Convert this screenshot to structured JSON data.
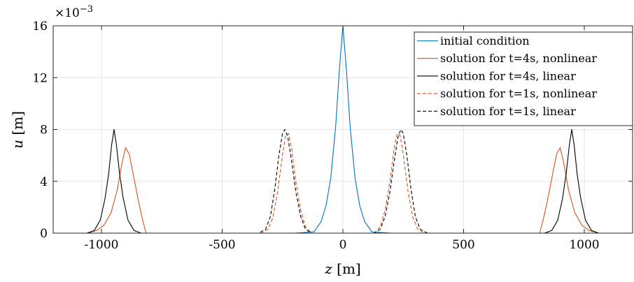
{
  "chart_data": {
    "type": "line",
    "xlabel": {
      "var": "z",
      "unit": " [m]"
    },
    "ylabel": {
      "var": "u",
      "unit": " [m]"
    },
    "y_multiplier": "×10",
    "y_multiplier_exp": "−3",
    "xlim": [
      -1200,
      1200
    ],
    "ylim": [
      0,
      16
    ],
    "xticks": [
      -1000,
      -500,
      0,
      500,
      1000
    ],
    "xtick_labels": [
      "-1000",
      "-500",
      "0",
      "500",
      "1000"
    ],
    "yticks": [
      0,
      4,
      8,
      12,
      16
    ],
    "ytick_labels": [
      "0",
      "4",
      "8",
      "12",
      "16"
    ],
    "grid": true,
    "legend_position": "top-right",
    "series": [
      {
        "name": "initial condition",
        "color": "#0072bd",
        "dash": "solid",
        "points": [
          [
            -1200,
            0
          ],
          [
            -200,
            0
          ],
          [
            -120,
            0.1
          ],
          [
            -90,
            0.9
          ],
          [
            -70,
            2.1
          ],
          [
            -50,
            4.3
          ],
          [
            -30,
            8.2
          ],
          [
            -15,
            12.5
          ],
          [
            0,
            16
          ],
          [
            15,
            12.5
          ],
          [
            30,
            8.2
          ],
          [
            50,
            4.3
          ],
          [
            70,
            2.1
          ],
          [
            90,
            0.9
          ],
          [
            120,
            0.1
          ],
          [
            200,
            0
          ],
          [
            1200,
            0
          ]
        ]
      },
      {
        "name": "solution for t=4s, nonlinear",
        "color": "#d95319",
        "dash": "solid",
        "points": [
          [
            -1200,
            0
          ],
          [
            -1060,
            0
          ],
          [
            -1020,
            0.2
          ],
          [
            -990,
            0.6
          ],
          [
            -960,
            1.6
          ],
          [
            -935,
            3.3
          ],
          [
            -915,
            5.4
          ],
          [
            -900,
            6.6
          ],
          [
            -885,
            6.1
          ],
          [
            -865,
            4.2
          ],
          [
            -845,
            2.3
          ],
          [
            -828,
            0.9
          ],
          [
            -815,
            0
          ],
          [
            -1200,
            0
          ],
          [
            815,
            0
          ],
          [
            828,
            0.9
          ],
          [
            845,
            2.3
          ],
          [
            865,
            4.2
          ],
          [
            885,
            6.1
          ],
          [
            900,
            6.6
          ],
          [
            915,
            5.4
          ],
          [
            935,
            3.3
          ],
          [
            960,
            1.6
          ],
          [
            990,
            0.6
          ],
          [
            1020,
            0.2
          ],
          [
            1060,
            0
          ],
          [
            1200,
            0
          ]
        ]
      },
      {
        "name": "solution for t=4s, linear",
        "color": "#000000",
        "dash": "solid",
        "points": [
          [
            -1200,
            0
          ],
          [
            -1060,
            0
          ],
          [
            -1030,
            0.2
          ],
          [
            -1005,
            1.0
          ],
          [
            -985,
            2.7
          ],
          [
            -970,
            4.6
          ],
          [
            -958,
            6.8
          ],
          [
            -948,
            8.0
          ],
          [
            -938,
            6.8
          ],
          [
            -925,
            4.6
          ],
          [
            -910,
            2.7
          ],
          [
            -890,
            1.0
          ],
          [
            -865,
            0.2
          ],
          [
            -835,
            0
          ],
          [
            835,
            0
          ],
          [
            865,
            0.2
          ],
          [
            890,
            1.0
          ],
          [
            910,
            2.7
          ],
          [
            925,
            4.6
          ],
          [
            938,
            6.8
          ],
          [
            948,
            8.0
          ],
          [
            958,
            6.8
          ],
          [
            970,
            4.6
          ],
          [
            985,
            2.7
          ],
          [
            1005,
            1.0
          ],
          [
            1030,
            0.2
          ],
          [
            1060,
            0
          ],
          [
            1200,
            0
          ]
        ]
      },
      {
        "name": "solution for t=1s, nonlinear",
        "color": "#d95319",
        "dash": "dashed",
        "points": [
          [
            -1200,
            0
          ],
          [
            -340,
            0
          ],
          [
            -310,
            0.3
          ],
          [
            -290,
            1.2
          ],
          [
            -270,
            3.2
          ],
          [
            -252,
            5.8
          ],
          [
            -238,
            7.5
          ],
          [
            -225,
            7.7
          ],
          [
            -212,
            6.5
          ],
          [
            -195,
            4.0
          ],
          [
            -175,
            1.8
          ],
          [
            -155,
            0.5
          ],
          [
            -130,
            0
          ],
          [
            130,
            0
          ],
          [
            155,
            0.5
          ],
          [
            175,
            1.8
          ],
          [
            195,
            4.0
          ],
          [
            212,
            6.5
          ],
          [
            225,
            7.7
          ],
          [
            238,
            7.5
          ],
          [
            252,
            5.8
          ],
          [
            270,
            3.2
          ],
          [
            290,
            1.2
          ],
          [
            310,
            0.3
          ],
          [
            340,
            0
          ],
          [
            1200,
            0
          ]
        ]
      },
      {
        "name": "solution for t=1s, linear",
        "color": "#000000",
        "dash": "dashed",
        "points": [
          [
            -1200,
            0
          ],
          [
            -350,
            0
          ],
          [
            -320,
            0.3
          ],
          [
            -300,
            1.3
          ],
          [
            -282,
            3.4
          ],
          [
            -265,
            6.0
          ],
          [
            -250,
            7.7
          ],
          [
            -240,
            8.0
          ],
          [
            -228,
            7.4
          ],
          [
            -212,
            5.5
          ],
          [
            -195,
            3.2
          ],
          [
            -175,
            1.3
          ],
          [
            -155,
            0.3
          ],
          [
            -130,
            0
          ],
          [
            130,
            0
          ],
          [
            155,
            0.3
          ],
          [
            175,
            1.3
          ],
          [
            195,
            3.2
          ],
          [
            212,
            5.5
          ],
          [
            228,
            7.4
          ],
          [
            240,
            8.0
          ],
          [
            250,
            7.7
          ],
          [
            265,
            6.0
          ],
          [
            282,
            3.4
          ],
          [
            300,
            1.3
          ],
          [
            320,
            0.3
          ],
          [
            350,
            0
          ],
          [
            1200,
            0
          ]
        ]
      }
    ]
  }
}
